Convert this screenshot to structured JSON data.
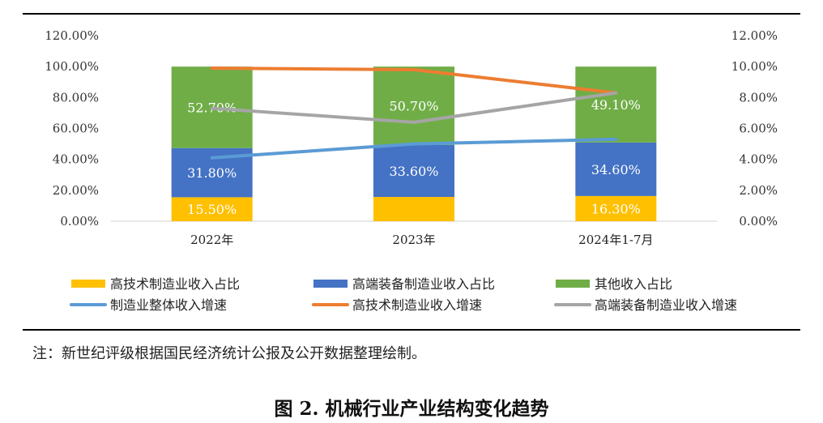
{
  "chart_data": {
    "type": "bar",
    "stacked": true,
    "categories": [
      "2022年",
      "2023年",
      "2024年1-7月"
    ],
    "y_left": {
      "min": 0,
      "max": 120,
      "step": 20,
      "tick_labels": [
        "0.00%",
        "20.00%",
        "40.00%",
        "60.00%",
        "80.00%",
        "100.00%",
        "120.00%"
      ]
    },
    "y_right": {
      "min": 0,
      "max": 12,
      "step": 2,
      "tick_labels": [
        "0.00%",
        "2.00%",
        "4.00%",
        "6.00%",
        "8.00%",
        "10.00%",
        "12.00%"
      ]
    },
    "bar_series": [
      {
        "name": "高技术制造业收入占比",
        "color": "#FFC000",
        "values": [
          15.5,
          15.7,
          16.3
        ],
        "labels": [
          "15.50%",
          "",
          "16.30%"
        ],
        "label_color": "#ffffff"
      },
      {
        "name": "高端装备制造业收入占比",
        "color": "#4472C4",
        "values": [
          31.8,
          33.6,
          34.6
        ],
        "labels": [
          "31.80%",
          "33.60%",
          "34.60%"
        ],
        "label_color": "#ffffff"
      },
      {
        "name": "其他收入占比",
        "color": "#70AD47",
        "values": [
          52.7,
          50.7,
          49.1
        ],
        "labels": [
          "52.70%",
          "50.70%",
          "49.10%"
        ],
        "label_color": "#ffffff"
      }
    ],
    "line_series": [
      {
        "name": "制造业整体收入增速",
        "color": "#5B9BD5",
        "axis": "right",
        "values": [
          4.1,
          5.0,
          5.3
        ]
      },
      {
        "name": "高技术制造业收入增速",
        "color": "#ED7D31",
        "axis": "right",
        "values": [
          9.9,
          9.8,
          8.3
        ]
      },
      {
        "name": "高端装备制造业收入增速",
        "color": "#A5A5A5",
        "axis": "right",
        "values": [
          7.3,
          6.4,
          8.3
        ]
      }
    ],
    "legend_position": "bottom",
    "grid": false
  },
  "note": "注：新世纪评级根据国民经济统计公报及公开数据整理绘制。",
  "caption": "图 2. 机械行业产业结构变化趋势"
}
